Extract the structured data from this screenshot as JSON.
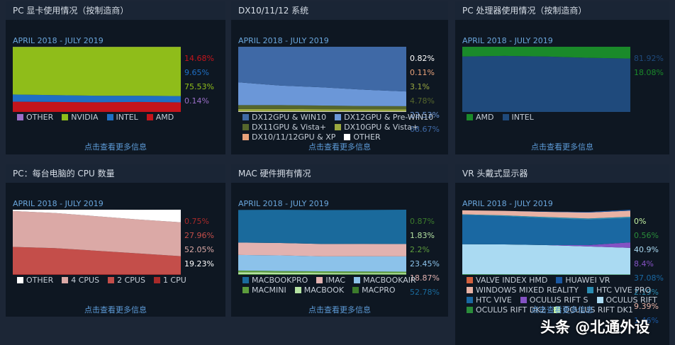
{
  "chart_data": [
    {
      "type": "area",
      "title": "PC 显卡使用情况（按制造商）",
      "subtitle": "APRIL 2018 - JULY 2019",
      "link_text": "点击查看更多信息",
      "categories": [
        null,
        null,
        null,
        null,
        null
      ],
      "ylim": [
        0,
        100
      ],
      "series": [
        {
          "name": "OTHER",
          "color": "#9b6fc9",
          "values": [
            0.2,
            0.2,
            0.2,
            0.1,
            0.14
          ],
          "value_labels": [
            null,
            null,
            null,
            null,
            "0.14%"
          ]
        },
        {
          "name": "NVIDIA",
          "color": "#8fbd1a",
          "values": [
            73,
            74,
            75,
            75,
            75.53
          ],
          "value_labels": [
            null,
            null,
            null,
            null,
            "75.53%"
          ]
        },
        {
          "name": "INTEL",
          "color": "#1f6fc4",
          "values": [
            11,
            10.5,
            10,
            9.5,
            9.65
          ],
          "value_labels": [
            null,
            null,
            null,
            null,
            "9.65%"
          ]
        },
        {
          "name": "AMD",
          "color": "#c4141b",
          "values": [
            15.8,
            15.3,
            14.8,
            15.4,
            14.68
          ],
          "value_labels": [
            null,
            null,
            null,
            null,
            "14.68%"
          ]
        }
      ]
    },
    {
      "type": "area",
      "title": "DX10/11/12 系统",
      "subtitle": "APRIL 2018 - JULY 2019",
      "link_text": "点击查看更多信息",
      "categories": [
        null,
        null,
        null,
        null,
        null
      ],
      "ylim": [
        0,
        100
      ],
      "series": [
        {
          "name": "DX12GPU & WIN10",
          "color": "#3f69a6",
          "values": [
            55,
            60,
            63,
            66,
            68.67
          ],
          "value_labels": [
            null,
            null,
            null,
            null,
            "68.67%"
          ]
        },
        {
          "name": "DX12GPU & Pre-WIN10",
          "color": "#6b97d8",
          "values": [
            35,
            30,
            28,
            25,
            22.53
          ],
          "value_labels": [
            null,
            null,
            null,
            null,
            "22.53%"
          ]
        },
        {
          "name": "DX11GPU & Vista+",
          "color": "#55662c",
          "values": [
            6,
            6,
            5.5,
            5,
            4.78
          ],
          "value_labels": [
            null,
            null,
            null,
            null,
            "4.78%"
          ]
        },
        {
          "name": "DX10GPU & Vista+",
          "color": "#9aa840",
          "values": [
            3.5,
            3.5,
            3.3,
            3.2,
            3.1
          ],
          "value_labels": [
            null,
            null,
            null,
            null,
            "3.1%"
          ]
        },
        {
          "name": "DX10/11/12GPU & XP",
          "color": "#e8a27a",
          "values": [
            0.2,
            0.15,
            0.12,
            0.1,
            0.11
          ],
          "value_labels": [
            null,
            null,
            null,
            null,
            "0.11%"
          ]
        },
        {
          "name": "OTHER",
          "color": "#ffffff",
          "values": [
            0.8,
            0.85,
            0.8,
            0.8,
            0.82
          ],
          "value_labels": [
            null,
            null,
            null,
            null,
            "0.82%"
          ]
        }
      ]
    },
    {
      "type": "area",
      "title": "PC 处理器使用情况（按制造商）",
      "subtitle": "APRIL 2018 - JULY 2019",
      "link_text": "点击查看更多信息",
      "categories": [
        null,
        null,
        null,
        null,
        null
      ],
      "ylim": [
        0,
        100
      ],
      "series": [
        {
          "name": "AMD",
          "color": "#1a8a2a",
          "values": [
            15,
            14,
            15,
            17,
            18.08
          ],
          "value_labels": [
            null,
            null,
            null,
            null,
            "18.08%"
          ]
        },
        {
          "name": "INTEL",
          "color": "#1f4a7c",
          "values": [
            85,
            86,
            85,
            83,
            81.92
          ],
          "value_labels": [
            null,
            null,
            null,
            null,
            "81.92%"
          ]
        }
      ]
    },
    {
      "type": "area",
      "title": "PC：每台电脑的 CPU 数量",
      "subtitle": "APRIL 2018 - JULY 2019",
      "link_text": "点击查看更多信息",
      "categories": [
        null,
        null,
        null,
        null,
        null
      ],
      "ylim": [
        0,
        100
      ],
      "series": [
        {
          "name": "OTHER",
          "color": "#ffffff",
          "values": [
            2,
            5,
            10,
            15,
            19.23
          ],
          "value_labels": [
            null,
            null,
            null,
            null,
            "19.23%"
          ]
        },
        {
          "name": "4 CPUS",
          "color": "#dba9a6",
          "values": [
            55,
            54,
            53,
            52,
            52.05
          ],
          "value_labels": [
            null,
            null,
            null,
            null,
            "52.05%"
          ]
        },
        {
          "name": "2 CPUS",
          "color": "#c44e4a",
          "values": [
            42,
            40,
            36,
            32,
            27.96
          ],
          "value_labels": [
            null,
            null,
            null,
            null,
            "27.96%"
          ]
        },
        {
          "name": "1 CPU",
          "color": "#a82a2a",
          "values": [
            1,
            1,
            1,
            0.9,
            0.75
          ],
          "value_labels": [
            null,
            null,
            null,
            null,
            "0.75%"
          ]
        }
      ]
    },
    {
      "type": "area",
      "title": "MAC 硬件拥有情况",
      "subtitle": "APRIL 2018 - JULY 2019",
      "link_text": "点击查看更多信息",
      "categories": [
        null,
        null,
        null,
        null,
        null
      ],
      "ylim": [
        0,
        100
      ],
      "series": [
        {
          "name": "MACBOOKPRO",
          "color": "#1a6a9c",
          "values": [
            50,
            51,
            52,
            52,
            52.78
          ],
          "value_labels": [
            null,
            null,
            null,
            null,
            "52.78%"
          ]
        },
        {
          "name": "IMAC",
          "color": "#e2b2b0",
          "values": [
            19,
            19,
            19,
            19,
            18.87
          ],
          "value_labels": [
            null,
            null,
            null,
            null,
            "18.87%"
          ]
        },
        {
          "name": "MACBOOKAIR",
          "color": "#8cc2ea",
          "values": [
            24,
            24,
            23,
            23.5,
            23.45
          ],
          "value_labels": [
            null,
            null,
            null,
            null,
            "23.45%"
          ]
        },
        {
          "name": "MACMINI",
          "color": "#5c9c3c",
          "values": [
            2.5,
            2.4,
            2.3,
            2.2,
            2.2
          ],
          "value_labels": [
            null,
            null,
            null,
            null,
            "2.2%"
          ]
        },
        {
          "name": "MACBOOK",
          "color": "#b4e2a2",
          "values": [
            3,
            2.5,
            2.2,
            2,
            1.83
          ],
          "value_labels": [
            null,
            null,
            null,
            null,
            "1.83%"
          ]
        },
        {
          "name": "MACPRO",
          "color": "#3c7c2c",
          "values": [
            1.1,
            1,
            0.9,
            0.9,
            0.87
          ],
          "value_labels": [
            null,
            null,
            null,
            null,
            "0.87%"
          ]
        }
      ]
    },
    {
      "type": "area",
      "title": "VR 头戴式显示器",
      "subtitle": "APRIL 2018 - JULY 2019",
      "link_text": "点击查看更多信息",
      "categories": [
        null,
        null,
        null,
        null,
        null
      ],
      "ylim": [
        0,
        100
      ],
      "series": [
        {
          "name": "VALVE INDEX HMD",
          "color": "#d2603e",
          "values": [
            0,
            0,
            0,
            0,
            0.02
          ],
          "value_labels": [
            null,
            null,
            null,
            null,
            null
          ]
        },
        {
          "name": "HUAWEI VR",
          "color": "#1a58a2",
          "values": [
            0,
            0,
            0.5,
            1,
            1.46
          ],
          "value_labels": [
            null,
            null,
            null,
            null,
            "1.46%"
          ]
        },
        {
          "name": "WINDOWS MIXED REALITY",
          "color": "#e8b2a4",
          "values": [
            6,
            7,
            8,
            9,
            9.39
          ],
          "value_labels": [
            null,
            null,
            null,
            null,
            "9.39%"
          ]
        },
        {
          "name": "HTC VIVE PRO",
          "color": "#2a8cb2",
          "values": [
            1,
            1.5,
            2,
            2,
            2.19
          ],
          "value_labels": [
            null,
            null,
            null,
            null,
            "2.19%"
          ]
        },
        {
          "name": "HTC VIVE",
          "color": "#1a68a2",
          "values": [
            45,
            43,
            41,
            39,
            37.08
          ],
          "value_labels": [
            null,
            null,
            null,
            null,
            "37.08%"
          ]
        },
        {
          "name": "OCULUS RIFT S",
          "color": "#8452c4",
          "values": [
            0,
            0,
            0,
            2,
            8.4
          ],
          "value_labels": [
            null,
            null,
            null,
            null,
            "8.4%"
          ]
        },
        {
          "name": "OCULUS RIFT",
          "color": "#aadaf2",
          "values": [
            46,
            46,
            45,
            43,
            40.9
          ],
          "value_labels": [
            null,
            null,
            null,
            null,
            "40.9%"
          ]
        },
        {
          "name": "OCULUS RIFT DK2",
          "color": "#2a8c3a",
          "values": [
            1,
            0.8,
            0.7,
            0.6,
            0.56
          ],
          "value_labels": [
            null,
            null,
            null,
            null,
            "0.56%"
          ]
        },
        {
          "name": "OCULUS RIFT DK1",
          "color": "#c4f2a2",
          "values": [
            0,
            0,
            0,
            0,
            0
          ],
          "value_labels": [
            null,
            null,
            null,
            null,
            "0%"
          ]
        }
      ]
    }
  ],
  "watermark": "头条 @北通外设"
}
